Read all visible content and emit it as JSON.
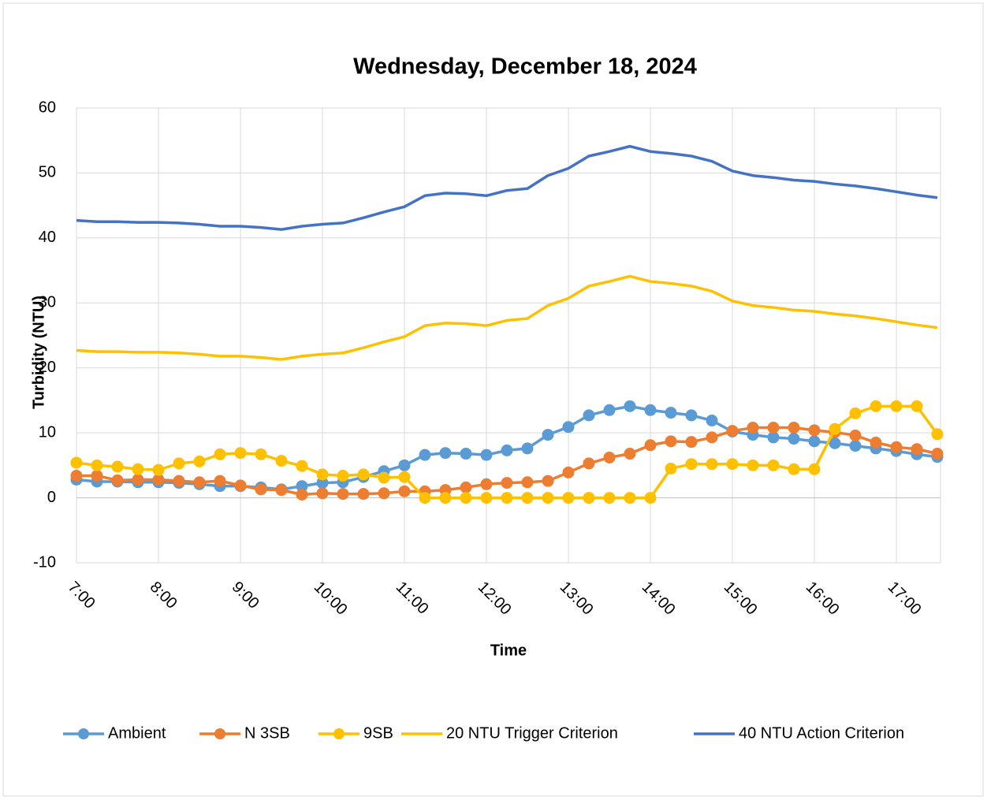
{
  "chart_data": {
    "type": "line",
    "title": "Wednesday, December 18, 2024",
    "x_label": "Time",
    "y_label": "Turbidity (NTU)",
    "categories": [
      "7:00",
      null,
      null,
      null,
      "8:00",
      null,
      null,
      null,
      "9:00",
      null,
      null,
      null,
      "10:00",
      null,
      null,
      null,
      "11:00",
      null,
      null,
      null,
      "12:00",
      null,
      null,
      null,
      "13:00",
      null,
      null,
      null,
      "14:00",
      null,
      null,
      null,
      "15:00",
      null,
      null,
      null,
      "16:00",
      null,
      null,
      null,
      "17:00",
      null,
      null
    ],
    "ylim": [
      -10,
      60
    ],
    "yticks": [
      -10,
      0,
      10,
      20,
      30,
      40,
      50,
      60
    ],
    "grid": true,
    "legend": "bottom",
    "series": [
      {
        "name": "Ambient",
        "color": "#5b9bd5",
        "marker": true,
        "values": [
          2.8,
          2.5,
          2.5,
          2.4,
          2.4,
          2.3,
          2.1,
          1.8,
          1.8,
          1.6,
          1.3,
          1.8,
          2.3,
          2.4,
          3.2,
          4.1,
          5.0,
          6.6,
          6.9,
          6.8,
          6.6,
          7.3,
          7.6,
          9.7,
          10.9,
          12.7,
          13.5,
          14.1,
          13.5,
          13.1,
          12.7,
          11.9,
          10.2,
          9.7,
          9.3,
          9.1,
          8.7,
          8.4,
          8.0,
          7.6,
          7.2,
          6.7,
          6.3
        ]
      },
      {
        "name": "N 3SB",
        "color": "#ed7d31",
        "marker": true,
        "values": [
          3.4,
          3.4,
          2.7,
          2.8,
          2.8,
          2.6,
          2.4,
          2.6,
          1.9,
          1.3,
          1.2,
          0.5,
          0.7,
          0.6,
          0.6,
          0.7,
          1.0,
          1.0,
          1.2,
          1.6,
          2.1,
          2.3,
          2.4,
          2.6,
          3.9,
          5.3,
          6.2,
          6.8,
          8.1,
          8.7,
          8.6,
          9.3,
          10.3,
          10.8,
          10.8,
          10.8,
          10.4,
          10.1,
          9.6,
          8.5,
          7.8,
          7.5,
          6.8
        ]
      },
      {
        "name": "9SB",
        "color": "#ffc000",
        "marker": true,
        "values": [
          5.4,
          5.0,
          4.8,
          4.4,
          4.3,
          5.3,
          5.6,
          6.7,
          6.9,
          6.7,
          5.7,
          4.9,
          3.6,
          3.4,
          3.6,
          3.1,
          3.2,
          0,
          0,
          0,
          0,
          0,
          0,
          0,
          0,
          0,
          0,
          0,
          0,
          4.5,
          5.2,
          5.2,
          5.2,
          5.0,
          5.0,
          4.4,
          4.4,
          10.6,
          13.0,
          14.1,
          14.1,
          14.1,
          9.8
        ]
      },
      {
        "name": "20 NTU Trigger Criterion",
        "color": "#ffc000",
        "marker": false,
        "values": [
          22.7,
          22.5,
          22.5,
          22.4,
          22.4,
          22.3,
          22.1,
          21.8,
          21.8,
          21.6,
          21.3,
          21.8,
          22.1,
          22.3,
          23.1,
          24.0,
          24.8,
          26.5,
          26.9,
          26.8,
          26.5,
          27.3,
          27.6,
          29.6,
          30.7,
          32.6,
          33.3,
          34.1,
          33.3,
          33.0,
          32.6,
          31.8,
          30.3,
          29.6,
          29.3,
          28.9,
          28.7,
          28.3,
          28.0,
          27.6,
          27.1,
          26.6,
          26.2
        ]
      },
      {
        "name": "40 NTU Action Criterion",
        "color": "#4472c4",
        "marker": false,
        "values": [
          42.7,
          42.5,
          42.5,
          42.4,
          42.4,
          42.3,
          42.1,
          41.8,
          41.8,
          41.6,
          41.3,
          41.8,
          42.1,
          42.3,
          43.1,
          44.0,
          44.8,
          46.5,
          46.9,
          46.8,
          46.5,
          47.3,
          47.6,
          49.6,
          50.7,
          52.6,
          53.3,
          54.1,
          53.3,
          53.0,
          52.6,
          51.8,
          50.3,
          49.6,
          49.3,
          48.9,
          48.7,
          48.3,
          48.0,
          47.6,
          47.1,
          46.6,
          46.2
        ]
      }
    ]
  }
}
